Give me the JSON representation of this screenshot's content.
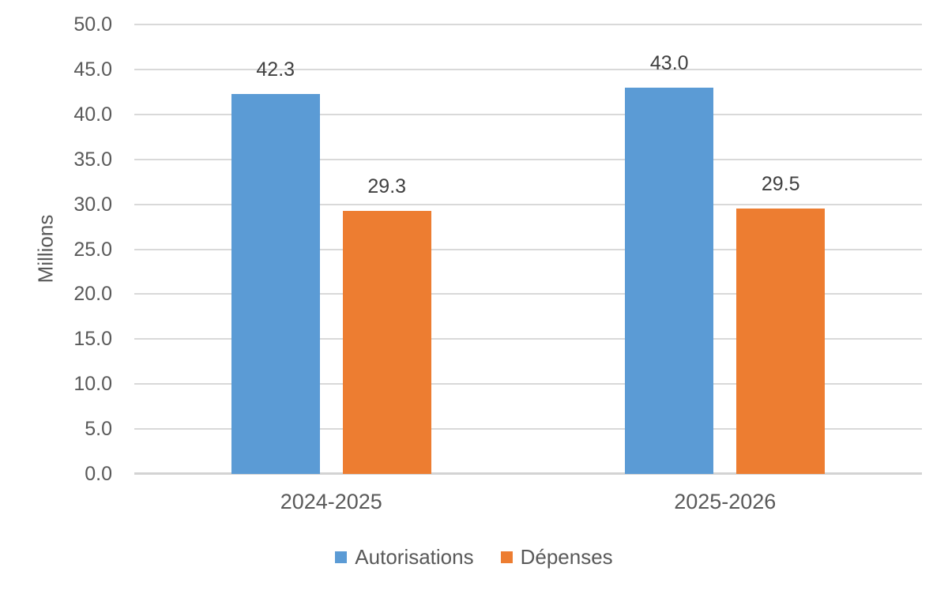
{
  "chart_data": {
    "type": "bar",
    "title": "",
    "categories": [
      "2024-2025",
      "2025-2026"
    ],
    "series": [
      {
        "name": "Autorisations",
        "color": "#5B9BD5",
        "values": [
          42.3,
          43.0
        ]
      },
      {
        "name": "Dépenses",
        "color": "#ED7D31",
        "values": [
          29.3,
          29.5
        ]
      }
    ],
    "data_labels": [
      [
        "42.3",
        "43.0"
      ],
      [
        "29.3",
        "29.5"
      ]
    ],
    "xlabel": "",
    "ylabel": "Millions",
    "ylim": [
      0,
      50
    ],
    "ytick_step": 5,
    "ytick_decimals": 1,
    "grid": true,
    "legend_position": "bottom",
    "colors": {
      "grid_line": "#D9D9D9",
      "axis_line": "#D3D3D3",
      "tick_text": "#595959",
      "data_label_text": "#404040",
      "legend_text": "#595959",
      "background": "#FFFFFF"
    }
  }
}
